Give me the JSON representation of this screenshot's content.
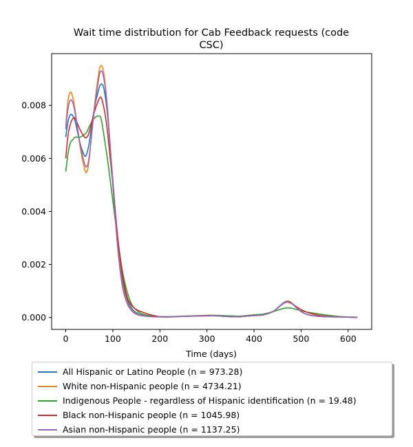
{
  "chart_data": {
    "type": "line",
    "title": "Wait time distribution  for Cab Feedback  requests (code CSC)",
    "title_lines": [
      "Wait time distribution  for Cab Feedback  requests (code",
      "CSC)"
    ],
    "xlabel": "Time (days)",
    "ylabel": "",
    "xlim": [
      -30,
      650
    ],
    "ylim": [
      -0.00045,
      0.00995
    ],
    "x_ticks": [
      0,
      100,
      200,
      300,
      400,
      500,
      600
    ],
    "y_ticks": [
      0.0,
      0.002,
      0.004,
      0.006,
      0.008
    ],
    "y_tick_labels": [
      "0.000",
      "0.002",
      "0.004",
      "0.006",
      "0.008"
    ],
    "grid": false,
    "legend_position": "below",
    "x": [
      0,
      5,
      10,
      15,
      20,
      30,
      40,
      45,
      50,
      60,
      70,
      75,
      80,
      85,
      90,
      100,
      110,
      120,
      130,
      140,
      150,
      160,
      180,
      200,
      220,
      250,
      300,
      320,
      350,
      370,
      400,
      420,
      440,
      460,
      470,
      480,
      500,
      520,
      550,
      580,
      600,
      620
    ],
    "series": [
      {
        "name": "All Hispanic or Latino People (n = 973.28)",
        "color": "#1f77b4",
        "values": [
          0.0068,
          0.0074,
          0.00765,
          0.0076,
          0.0074,
          0.0066,
          0.0061,
          0.0062,
          0.0066,
          0.0078,
          0.0086,
          0.0088,
          0.0087,
          0.0082,
          0.0074,
          0.0052,
          0.003,
          0.0015,
          0.0007,
          0.00035,
          0.00018,
          0.0001,
          5e-05,
          3e-05,
          3e-05,
          4e-05,
          6e-05,
          6e-05,
          3e-05,
          3e-05,
          7e-05,
          0.0001,
          0.00022,
          0.00052,
          0.00062,
          0.00055,
          0.00022,
          8e-05,
          3e-05,
          2e-05,
          1e-05,
          0.0
        ]
      },
      {
        "name": "White non-Hispanic people (n = 4734.21)",
        "color": "#ff7f0e",
        "values": [
          0.0072,
          0.0082,
          0.0085,
          0.0083,
          0.0078,
          0.0065,
          0.0056,
          0.0055,
          0.006,
          0.0078,
          0.0092,
          0.0095,
          0.0093,
          0.0086,
          0.0076,
          0.0051,
          0.0028,
          0.0013,
          0.0006,
          0.00028,
          0.00014,
          8e-05,
          4e-05,
          2e-05,
          2e-05,
          4e-05,
          6e-05,
          6e-05,
          3e-05,
          3e-05,
          7e-05,
          0.0001,
          0.00022,
          0.0005,
          0.00062,
          0.00055,
          0.00022,
          8e-05,
          3e-05,
          2e-05,
          1e-05,
          0.0
        ]
      },
      {
        "name": "Indigenous People - regardless of Hispanic identification (n = 19.48)",
        "color": "#2ca02c",
        "values": [
          0.0055,
          0.0062,
          0.0066,
          0.0067,
          0.0068,
          0.0068,
          0.0069,
          0.007,
          0.0072,
          0.0075,
          0.0076,
          0.0075,
          0.007,
          0.0064,
          0.0058,
          0.0044,
          0.003,
          0.0018,
          0.001,
          0.0005,
          0.00028,
          0.00015,
          6e-05,
          3e-05,
          3e-05,
          5e-05,
          8e-05,
          8e-05,
          6e-05,
          5e-05,
          0.0001,
          0.00013,
          0.00022,
          0.00033,
          0.00036,
          0.00035,
          0.00025,
          0.00018,
          0.0001,
          4e-05,
          2e-05,
          1e-05
        ]
      },
      {
        "name": "Black non-Hispanic people (n = 1045.98)",
        "color": "#d62728",
        "values": [
          0.006,
          0.0069,
          0.0073,
          0.0075,
          0.0075,
          0.0071,
          0.0068,
          0.0068,
          0.007,
          0.0077,
          0.0082,
          0.0083,
          0.008,
          0.0075,
          0.0068,
          0.005,
          0.0031,
          0.0017,
          0.0008,
          0.00045,
          0.0003,
          0.00022,
          0.0001,
          3e-05,
          2e-05,
          4e-05,
          7e-05,
          6e-05,
          3e-05,
          3e-05,
          7e-05,
          0.0001,
          0.00022,
          0.0005,
          0.00058,
          0.00052,
          0.0003,
          0.00015,
          5e-05,
          2e-05,
          1e-05,
          0.0
        ]
      },
      {
        "name": "Asian non-Hispanic people (n = 1137.25)",
        "color": "#9467bd",
        "values": [
          0.0071,
          0.0079,
          0.0082,
          0.0081,
          0.0077,
          0.0066,
          0.0058,
          0.0057,
          0.0061,
          0.0077,
          0.009,
          0.0093,
          0.0091,
          0.0085,
          0.0075,
          0.005,
          0.0027,
          0.0012,
          0.00055,
          0.00025,
          0.00012,
          7e-05,
          3e-05,
          2e-05,
          2e-05,
          4e-05,
          6e-05,
          6e-05,
          3e-05,
          3e-05,
          7e-05,
          0.0001,
          0.00022,
          0.0005,
          0.0006,
          0.00053,
          0.00022,
          8e-05,
          3e-05,
          2e-05,
          1e-05,
          0.0
        ]
      }
    ]
  }
}
